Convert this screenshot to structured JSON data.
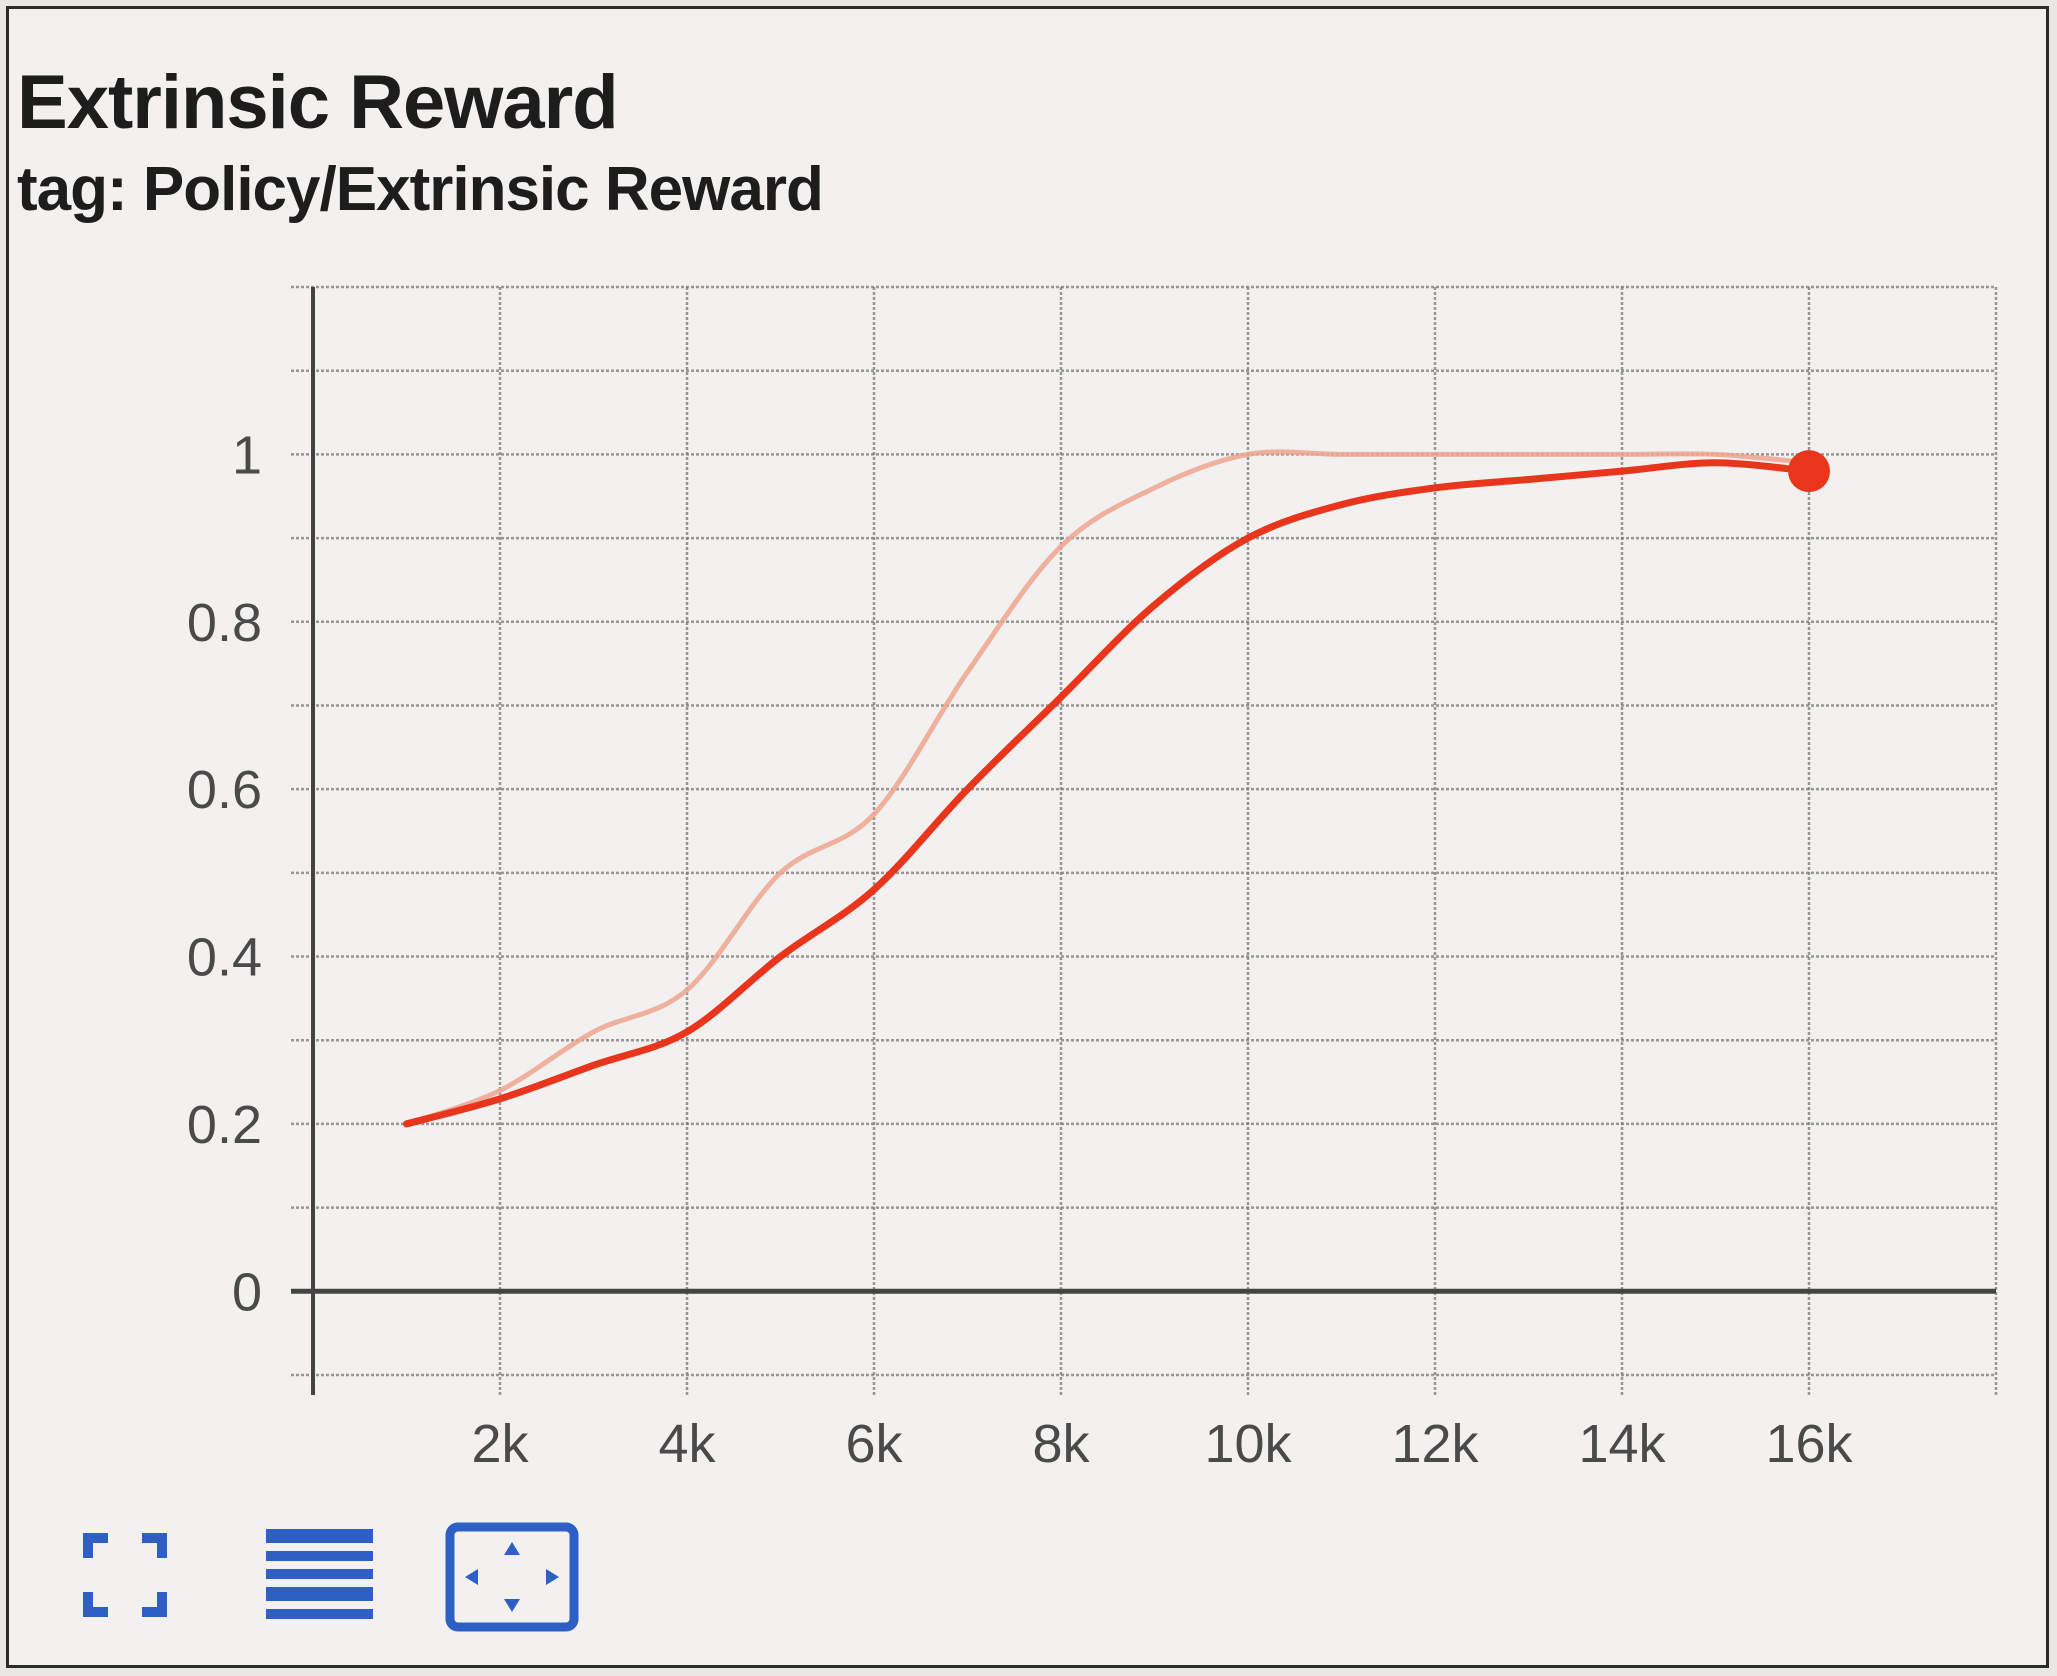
{
  "card": {
    "title": "Extrinsic Reward",
    "subtitle": "tag: Policy/Extrinsic Reward"
  },
  "toolbar": {
    "buttons": [
      {
        "name": "fullscreen-button",
        "icon": "fullscreen-icon"
      },
      {
        "name": "toggle-y-log-button",
        "icon": "lines-icon"
      },
      {
        "name": "fit-domain-button",
        "icon": "fit-domain-icon"
      }
    ]
  },
  "colors": {
    "smoothed": "#e8351b",
    "raw": "#f0a48f",
    "grid": "#7a7a7a",
    "axis": "#444444",
    "toolbar": "#2d5fc4"
  },
  "chart_data": {
    "type": "line",
    "title": "Extrinsic Reward",
    "subtitle": "tag: Policy/Extrinsic Reward",
    "xlabel": "",
    "ylabel": "",
    "xlim": [
      0,
      18000
    ],
    "ylim": [
      -0.1,
      1.2
    ],
    "x_ticks": [
      2000,
      4000,
      6000,
      8000,
      10000,
      12000,
      14000,
      16000
    ],
    "x_tick_labels": [
      "2k",
      "4k",
      "6k",
      "8k",
      "10k",
      "12k",
      "14k",
      "16k"
    ],
    "y_ticks": [
      0,
      0.2,
      0.4,
      0.6,
      0.8,
      1
    ],
    "y_tick_labels": [
      "0",
      "0.2",
      "0.4",
      "0.6",
      "0.8",
      "1"
    ],
    "grid": true,
    "series": [
      {
        "style": "raw",
        "x": [
          1000,
          2000,
          3000,
          4000,
          5000,
          6000,
          7000,
          8000,
          9000,
          10000,
          11000,
          12000,
          13000,
          14000,
          15000,
          16000
        ],
        "y": [
          0.2,
          0.24,
          0.31,
          0.36,
          0.5,
          0.57,
          0.74,
          0.89,
          0.96,
          1.0,
          1.0,
          1.0,
          1.0,
          1.0,
          1.0,
          0.99
        ]
      },
      {
        "style": "smoothed",
        "x": [
          1000,
          2000,
          3000,
          4000,
          5000,
          6000,
          7000,
          8000,
          9000,
          10000,
          11000,
          12000,
          13000,
          14000,
          15000,
          16000
        ],
        "y": [
          0.2,
          0.23,
          0.27,
          0.31,
          0.4,
          0.48,
          0.6,
          0.71,
          0.82,
          0.9,
          0.94,
          0.96,
          0.97,
          0.98,
          0.99,
          0.98
        ]
      }
    ]
  }
}
